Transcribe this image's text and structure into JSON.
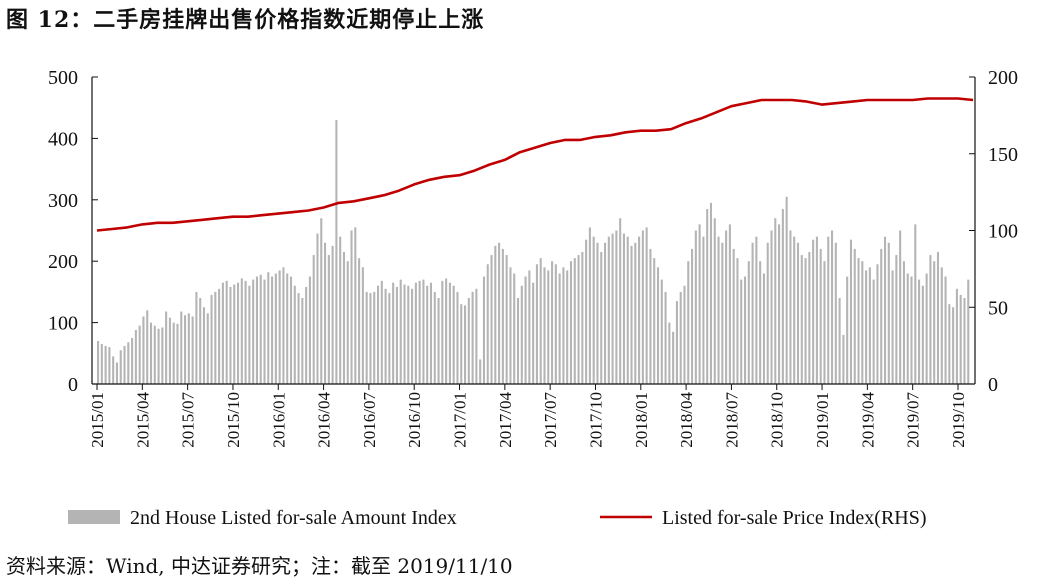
{
  "title": "图 12：二手房挂牌出售价格指数近期停止上涨",
  "source": "资料来源：Wind, 中达证券研究；注：截至 2019/11/10",
  "colors": {
    "bars": "#b4b4b4",
    "line": "#c00000",
    "axis": "#111111"
  },
  "chart_data": {
    "type": "bar+line",
    "x_ticks": [
      "2015/01",
      "2015/04",
      "2015/07",
      "2015/10",
      "2016/01",
      "2016/04",
      "2016/07",
      "2016/10",
      "2017/01",
      "2017/04",
      "2017/07",
      "2017/10",
      "2018/01",
      "2018/04",
      "2018/07",
      "2018/10",
      "2019/01",
      "2019/04",
      "2019/07",
      "2019/10"
    ],
    "y_left": {
      "ticks": [
        "0",
        "100",
        "200",
        "300",
        "400",
        "500"
      ],
      "range": [
        0,
        500
      ]
    },
    "y_right": {
      "ticks": [
        "0",
        "50",
        "100",
        "150",
        "200"
      ],
      "range": [
        0,
        200
      ]
    },
    "grid": false,
    "legend_position": "bottom",
    "series": [
      {
        "name": "2nd House Listed for-sale Amount Index",
        "type": "bar",
        "axis": "left",
        "frequency": "weekly",
        "values": [
          70,
          65,
          62,
          60,
          45,
          35,
          55,
          62,
          68,
          75,
          88,
          95,
          110,
          120,
          100,
          95,
          90,
          92,
          118,
          108,
          100,
          98,
          118,
          112,
          115,
          110,
          150,
          140,
          125,
          115,
          145,
          150,
          155,
          165,
          168,
          158,
          162,
          165,
          172,
          168,
          160,
          170,
          175,
          178,
          170,
          182,
          175,
          180,
          185,
          190,
          180,
          175,
          160,
          148,
          140,
          158,
          175,
          210,
          245,
          270,
          230,
          210,
          225,
          430,
          240,
          215,
          200,
          250,
          255,
          205,
          190,
          150,
          148,
          150,
          160,
          168,
          155,
          148,
          165,
          158,
          170,
          162,
          160,
          155,
          165,
          168,
          170,
          160,
          165,
          150,
          140,
          168,
          172,
          165,
          160,
          150,
          130,
          128,
          140,
          150,
          155,
          40,
          175,
          195,
          210,
          225,
          230,
          220,
          210,
          190,
          180,
          140,
          160,
          175,
          185,
          165,
          195,
          205,
          190,
          185,
          200,
          195,
          180,
          190,
          185,
          200,
          205,
          210,
          215,
          235,
          255,
          240,
          230,
          215,
          230,
          240,
          245,
          250,
          270,
          245,
          240,
          225,
          230,
          240,
          250,
          255,
          220,
          205,
          190,
          170,
          150,
          100,
          85,
          135,
          150,
          160,
          200,
          220,
          250,
          260,
          240,
          285,
          295,
          270,
          240,
          230,
          250,
          260,
          220,
          205,
          170,
          175,
          200,
          230,
          240,
          200,
          180,
          230,
          250,
          270,
          260,
          285,
          305,
          250,
          240,
          230,
          210,
          205,
          215,
          235,
          240,
          220,
          200,
          240,
          250,
          230,
          140,
          80,
          175,
          235,
          220,
          205,
          200,
          185,
          190,
          170,
          195,
          220,
          240,
          230,
          185,
          210,
          250,
          200,
          180,
          175,
          260,
          170,
          160,
          180,
          210,
          200,
          215,
          190,
          175,
          130,
          125,
          155,
          145,
          140,
          170
        ]
      },
      {
        "name": "Listed for-sale Price Index(RHS)",
        "type": "line",
        "axis": "right",
        "points": [
          [
            "2015/01",
            100
          ],
          [
            "2015/02",
            101
          ],
          [
            "2015/03",
            102
          ],
          [
            "2015/04",
            104
          ],
          [
            "2015/05",
            105
          ],
          [
            "2015/06",
            105
          ],
          [
            "2015/07",
            106
          ],
          [
            "2015/08",
            107
          ],
          [
            "2015/09",
            108
          ],
          [
            "2015/10",
            109
          ],
          [
            "2015/11",
            109
          ],
          [
            "2015/12",
            110
          ],
          [
            "2016/01",
            111
          ],
          [
            "2016/02",
            112
          ],
          [
            "2016/03",
            113
          ],
          [
            "2016/04",
            115
          ],
          [
            "2016/05",
            118
          ],
          [
            "2016/06",
            119
          ],
          [
            "2016/07",
            121
          ],
          [
            "2016/08",
            123
          ],
          [
            "2016/09",
            126
          ],
          [
            "2016/10",
            130
          ],
          [
            "2016/11",
            133
          ],
          [
            "2016/12",
            135
          ],
          [
            "2017/01",
            136
          ],
          [
            "2017/02",
            139
          ],
          [
            "2017/03",
            143
          ],
          [
            "2017/04",
            146
          ],
          [
            "2017/05",
            151
          ],
          [
            "2017/06",
            154
          ],
          [
            "2017/07",
            157
          ],
          [
            "2017/08",
            159
          ],
          [
            "2017/09",
            159
          ],
          [
            "2017/10",
            161
          ],
          [
            "2017/11",
            162
          ],
          [
            "2017/12",
            164
          ],
          [
            "2018/01",
            165
          ],
          [
            "2018/02",
            165
          ],
          [
            "2018/03",
            166
          ],
          [
            "2018/04",
            170
          ],
          [
            "2018/05",
            173
          ],
          [
            "2018/06",
            177
          ],
          [
            "2018/07",
            181
          ],
          [
            "2018/08",
            183
          ],
          [
            "2018/09",
            185
          ],
          [
            "2018/10",
            185
          ],
          [
            "2018/11",
            185
          ],
          [
            "2018/12",
            184
          ],
          [
            "2019/01",
            182
          ],
          [
            "2019/02",
            183
          ],
          [
            "2019/03",
            184
          ],
          [
            "2019/04",
            185
          ],
          [
            "2019/05",
            185
          ],
          [
            "2019/06",
            185
          ],
          [
            "2019/07",
            185
          ],
          [
            "2019/08",
            186
          ],
          [
            "2019/09",
            186
          ],
          [
            "2019/10",
            186
          ],
          [
            "2019/11",
            185
          ]
        ]
      }
    ]
  }
}
